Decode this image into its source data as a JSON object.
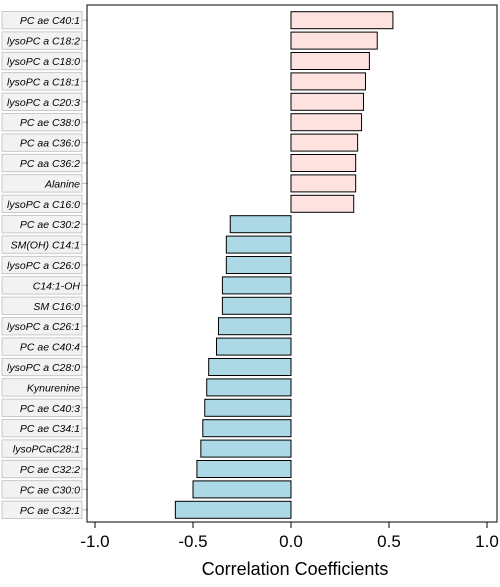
{
  "chart_data": {
    "type": "bar",
    "orientation": "horizontal",
    "title": "",
    "xlabel": "Correlation Coefficients",
    "ylabel": "",
    "xlim": [
      -1.0,
      1.0
    ],
    "xticks": [
      -1.0,
      -0.5,
      0.0,
      0.5,
      1.0
    ],
    "xtick_labels": [
      "-1.0",
      "-0.5",
      "0.0",
      "0.5",
      "1.0"
    ],
    "grid": false,
    "legend": "none",
    "colors": {
      "positive": "#fde2e0",
      "negative": "#add8e6",
      "edge": "#000000",
      "label_box": "#f2f2f2"
    },
    "categories": [
      "PC ae C40:1",
      "lysoPC a C18:2",
      "lysoPC a C18:0",
      "lysoPC a C18:1",
      "lysoPC a C20:3",
      "PC ae C38:0",
      "PC aa C36:0",
      "PC aa C36:2",
      "Alanine",
      "lysoPC a C16:0",
      "PC ae C30:2",
      "SM(OH) C14:1",
      "lysoPC a C26:0",
      "C14:1-OH",
      "SM C16:0",
      "lysoPC a C26:1",
      "PC ae C40:4",
      "lysoPC a C28:0",
      "Kynurenine",
      "PC ae C40:3",
      "PC ae C34:1",
      "lysoPCaC28:1",
      "PC ae C32:2",
      "PC ae C30:0",
      "PC ae C32:1"
    ],
    "values": [
      0.52,
      0.44,
      0.4,
      0.38,
      0.37,
      0.36,
      0.34,
      0.33,
      0.33,
      0.32,
      -0.31,
      -0.33,
      -0.33,
      -0.35,
      -0.35,
      -0.37,
      -0.38,
      -0.42,
      -0.43,
      -0.44,
      -0.45,
      -0.46,
      -0.48,
      -0.5,
      -0.59
    ]
  }
}
